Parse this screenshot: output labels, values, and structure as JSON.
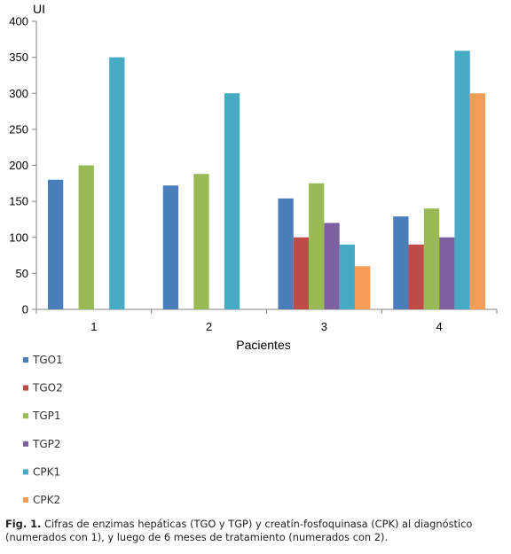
{
  "chart_data": {
    "type": "bar",
    "ylabel": "UI",
    "xlabel": "Pacientes",
    "categories": [
      "1",
      "2",
      "3",
      "4"
    ],
    "ylim": [
      0,
      400
    ],
    "yticks": [
      0,
      50,
      100,
      150,
      200,
      250,
      300,
      350,
      400
    ],
    "grid": false,
    "legend_position": "bottom-left, vertical",
    "series": [
      {
        "name": "TGO1",
        "color": "#4a7ebb",
        "values": [
          180,
          172,
          154,
          129
        ]
      },
      {
        "name": "TGO2",
        "color": "#be4b48",
        "values": [
          null,
          null,
          100,
          90
        ]
      },
      {
        "name": "TGP1",
        "color": "#98b954",
        "values": [
          200,
          188,
          175,
          140
        ]
      },
      {
        "name": "TGP2",
        "color": "#7d60a0",
        "values": [
          null,
          null,
          120,
          100
        ]
      },
      {
        "name": "CPK1",
        "color": "#46aac4",
        "values": [
          350,
          300,
          90,
          359
        ]
      },
      {
        "name": "CPK2",
        "color": "#f59d56",
        "values": [
          null,
          null,
          60,
          300
        ]
      }
    ]
  },
  "caption": {
    "label": "Fig. 1.",
    "text": " Cifras de enzimas hepáticas (TGO y TGP) y creatín-fosfoquinasa (CPK) al diagnóstico (numerados con 1), y luego de 6 meses de tratamiento (numerados con 2)."
  }
}
